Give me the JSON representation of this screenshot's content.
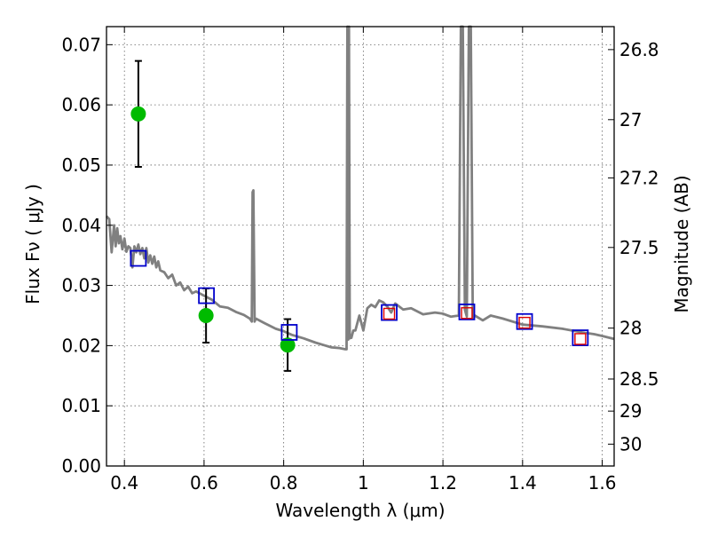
{
  "chart_data": {
    "type": "scatter",
    "xlabel": "Wavelength  λ (μm)",
    "ylabel": "Flux  Fν  ( μJy )",
    "y2label": "Magnitude (AB)",
    "xlim": [
      0.355,
      1.63
    ],
    "ylim": [
      0.0,
      0.073
    ],
    "xticks": [
      0.4,
      0.6,
      0.8,
      1.0,
      1.2,
      1.4,
      1.6
    ],
    "xtick_labels": [
      "0.4",
      "0.6",
      "0.8",
      "1",
      "1.2",
      "1.4",
      "1.6"
    ],
    "yticks": [
      0.0,
      0.01,
      0.02,
      0.03,
      0.04,
      0.05,
      0.06,
      0.07
    ],
    "ytick_labels": [
      "0.00",
      "0.01",
      "0.02",
      "0.03",
      "0.04",
      "0.05",
      "0.06",
      "0.07"
    ],
    "y2ticks": [
      26.8,
      27.0,
      27.2,
      27.5,
      28.0,
      28.5,
      29.0,
      30.0
    ],
    "y2tick_labels": [
      "26.8",
      "27",
      "27.2",
      "27.5",
      "28",
      "28.5",
      "29",
      "30"
    ],
    "grid": true,
    "series": [
      {
        "kind": "line",
        "color": "#808080",
        "x": [
          0.355,
          0.362,
          0.368,
          0.374,
          0.378,
          0.382,
          0.386,
          0.39,
          0.395,
          0.4,
          0.405,
          0.41,
          0.415,
          0.42,
          0.425,
          0.43,
          0.435,
          0.44,
          0.445,
          0.45,
          0.455,
          0.46,
          0.465,
          0.47,
          0.475,
          0.48,
          0.485,
          0.49,
          0.5,
          0.51,
          0.52,
          0.53,
          0.54,
          0.55,
          0.56,
          0.57,
          0.58,
          0.6,
          0.62,
          0.64,
          0.66,
          0.68,
          0.7,
          0.715,
          0.72,
          0.722,
          0.724,
          0.727,
          0.73,
          0.75,
          0.78,
          0.8,
          0.82,
          0.85,
          0.88,
          0.9,
          0.92,
          0.94,
          0.955,
          0.958,
          0.96,
          0.962,
          0.964,
          0.966,
          0.968,
          0.97,
          0.975,
          0.98,
          0.99,
          1.0,
          1.01,
          1.02,
          1.03,
          1.04,
          1.05,
          1.06,
          1.07,
          1.08,
          1.1,
          1.12,
          1.15,
          1.18,
          1.2,
          1.22,
          1.24,
          1.245,
          1.25,
          1.255,
          1.26,
          1.265,
          1.27,
          1.275,
          1.28,
          1.3,
          1.32,
          1.35,
          1.4,
          1.45,
          1.5,
          1.55,
          1.58,
          1.6,
          1.63
        ],
        "y": [
          0.0415,
          0.041,
          0.0355,
          0.04,
          0.0365,
          0.0395,
          0.037,
          0.0382,
          0.036,
          0.0378,
          0.0356,
          0.0365,
          0.0362,
          0.033,
          0.0365,
          0.0355,
          0.0368,
          0.0352,
          0.0362,
          0.0345,
          0.0362,
          0.0338,
          0.035,
          0.0336,
          0.0348,
          0.033,
          0.034,
          0.0325,
          0.0322,
          0.0312,
          0.0318,
          0.03,
          0.0305,
          0.0292,
          0.0298,
          0.0287,
          0.029,
          0.0283,
          0.0276,
          0.0265,
          0.0263,
          0.0256,
          0.0251,
          0.0245,
          0.024,
          0.0455,
          0.0458,
          0.024,
          0.0245,
          0.0238,
          0.0228,
          0.0224,
          0.0218,
          0.0212,
          0.0205,
          0.0201,
          0.0197,
          0.0196,
          0.0194,
          0.0194,
          0.073,
          0.021,
          0.073,
          0.0212,
          0.0215,
          0.0213,
          0.0225,
          0.0225,
          0.025,
          0.0225,
          0.0262,
          0.0268,
          0.0264,
          0.0275,
          0.0272,
          0.0265,
          0.0255,
          0.027,
          0.026,
          0.0262,
          0.0252,
          0.0255,
          0.0253,
          0.0248,
          0.025,
          0.073,
          0.073,
          0.026,
          0.0248,
          0.073,
          0.073,
          0.0245,
          0.025,
          0.0242,
          0.025,
          0.0245,
          0.0235,
          0.0232,
          0.0228,
          0.0222,
          0.0219,
          0.0216,
          0.0211
        ]
      },
      {
        "kind": "points_with_errors",
        "color": "#00bb00",
        "x": [
          0.435,
          0.605,
          0.81
        ],
        "y": [
          0.0585,
          0.025,
          0.0201
        ],
        "yerr": [
          0.0088,
          0.0045,
          0.0043
        ]
      },
      {
        "kind": "squares",
        "color": "#0000cc",
        "x": [
          0.435,
          0.606,
          0.814,
          1.065,
          1.26,
          1.405,
          1.545
        ],
        "y": [
          0.0345,
          0.0283,
          0.0222,
          0.0255,
          0.0256,
          0.024,
          0.0213
        ]
      },
      {
        "kind": "squares",
        "color": "#dd0000",
        "x": [
          1.065,
          1.26,
          1.405,
          1.545
        ],
        "y": [
          0.0253,
          0.0254,
          0.0238,
          0.0211
        ]
      }
    ]
  }
}
